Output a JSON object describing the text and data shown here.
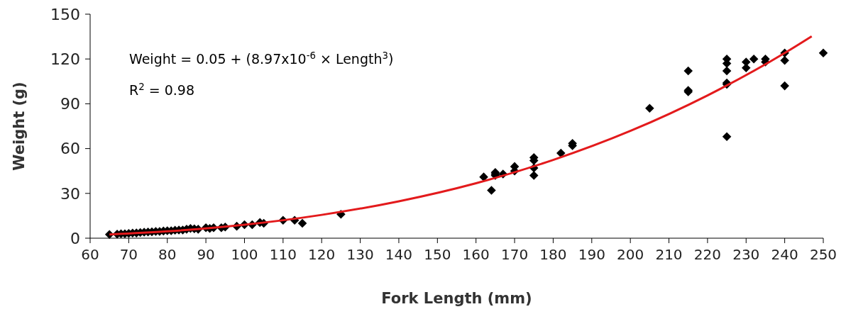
{
  "chart_data": {
    "type": "scatter",
    "xlabel": "Fork Length (mm)",
    "ylabel": "Weight (g)",
    "xlim": [
      60,
      250
    ],
    "xticks": [
      60,
      70,
      80,
      90,
      100,
      110,
      120,
      130,
      140,
      150,
      160,
      170,
      180,
      190,
      200,
      210,
      220,
      230,
      240,
      250
    ],
    "ylim": [
      0,
      150
    ],
    "yticks": [
      0,
      30,
      60,
      90,
      120,
      150
    ],
    "grid": false,
    "annotations": [
      "Weight = 0.05 + (8.97x10$^{-6}$ × Length$^{3}$)",
      "R$^{2}$ = 0.98"
    ],
    "series": [
      {
        "marker": "diamond",
        "color": "#000000",
        "x": [
          65,
          67,
          68,
          69,
          70,
          71,
          72,
          73,
          74,
          75,
          76,
          77,
          78,
          79,
          80,
          81,
          82,
          83,
          84,
          85,
          86,
          87,
          88,
          90,
          91,
          92,
          94,
          95,
          98,
          100,
          102,
          104,
          105,
          110,
          113,
          115,
          125,
          162,
          164,
          165,
          165,
          165,
          167,
          170,
          170,
          175,
          175,
          175,
          175,
          182,
          185,
          185,
          205,
          215,
          215,
          215,
          225,
          225,
          225,
          225,
          225,
          225,
          230,
          230,
          232,
          235,
          235,
          240,
          240,
          240,
          250
        ],
        "values": [
          2.5,
          2.7,
          3,
          3,
          3.2,
          3.4,
          3.5,
          3.8,
          4,
          4.2,
          4.3,
          4.5,
          4.5,
          4.8,
          5,
          5,
          5.3,
          5.5,
          5.5,
          6,
          6.5,
          6.3,
          6,
          7,
          6.5,
          7,
          7,
          7.5,
          8,
          9,
          9,
          10.5,
          10,
          12,
          12,
          10,
          16,
          41,
          32,
          43,
          44,
          42,
          43,
          45,
          48,
          54,
          52,
          47,
          42,
          57,
          62,
          63.5,
          87,
          112,
          99,
          98,
          120,
          117,
          112,
          104,
          103,
          68,
          118,
          114,
          120,
          120,
          118,
          124,
          119,
          102,
          124
        ]
      },
      {
        "type": "line",
        "marker": "none",
        "line_style": "solid",
        "color": "#e31a1c",
        "x": [
          65,
          80,
          100,
          120,
          140,
          160,
          180,
          200,
          220,
          240,
          247
        ],
        "values": [
          2.5,
          4.6,
          9,
          15.6,
          24.7,
          36.8,
          52.4,
          71.8,
          95.6,
          124,
          135.2
        ]
      }
    ]
  }
}
